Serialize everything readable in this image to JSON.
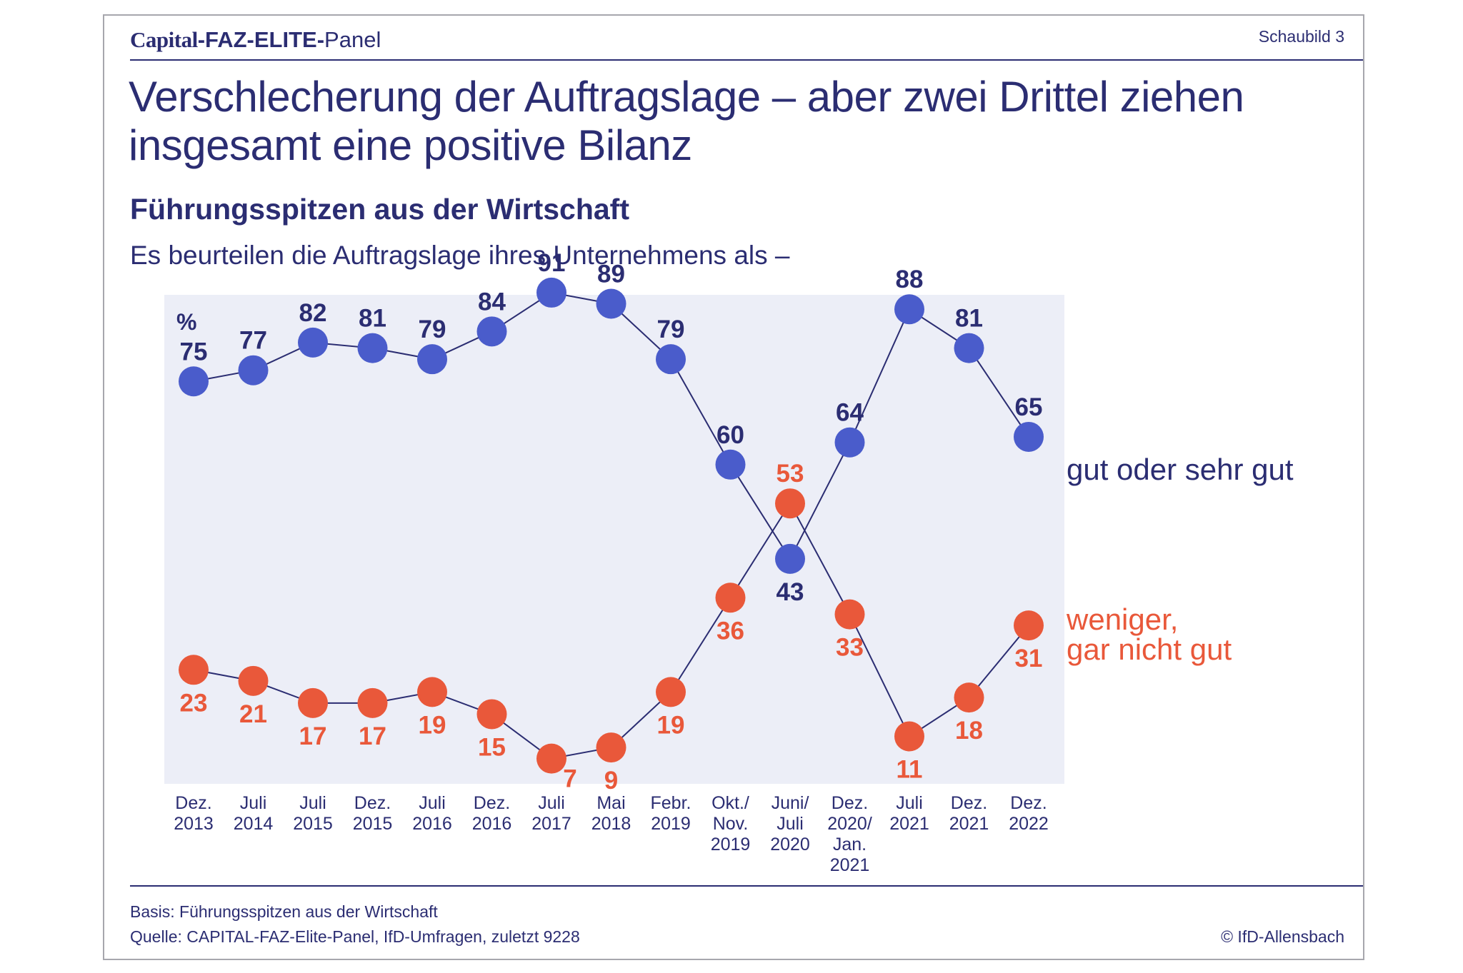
{
  "header": {
    "brand_capital": "Capital",
    "brand_faz": "-FAZ-ELITE-",
    "brand_panel": "Panel",
    "schaubild": "Schaubild 3"
  },
  "title": "Verschlecherung der Auftragslage – aber zwei Drittel ziehen insgesamt eine positive Bilanz",
  "subtitle": "Führungsspitzen aus der Wirtschaft",
  "question": "Es beurteilen die Auftragslage ihres Unternehmens als –",
  "footer": {
    "basis": "Basis: Führungsspitzen aus der Wirtschaft",
    "quelle": "Quelle: CAPITAL-FAZ-Elite-Panel, IfD-Umfragen, zuletzt 9228",
    "copyright": "© IfD-Allensbach"
  },
  "colors": {
    "blue_marker": "#4a5ccb",
    "blue_label": "#2b2d72",
    "orange": "#e9583a",
    "plot_bg": "#eceef7",
    "text": "#2b2d72"
  },
  "chart_data": {
    "type": "line",
    "unit_label": "%",
    "categories": [
      [
        "Dez.",
        "2013"
      ],
      [
        "Juli",
        "2014"
      ],
      [
        "Juli",
        "2015"
      ],
      [
        "Dez.",
        "2015"
      ],
      [
        "Juli",
        "2016"
      ],
      [
        "Dez.",
        "2016"
      ],
      [
        "Juli",
        "2017"
      ],
      [
        "Mai",
        "2018"
      ],
      [
        "Febr.",
        "2019"
      ],
      [
        "Okt./",
        "Nov.",
        "2019"
      ],
      [
        "Juni/",
        "Juli",
        "2020"
      ],
      [
        "Dez.",
        "2020/",
        "Jan.",
        "2021"
      ],
      [
        "Juli",
        "2021"
      ],
      [
        "Dez.",
        "2021"
      ],
      [
        "Dez.",
        "2022"
      ]
    ],
    "series": [
      {
        "name": "gut oder sehr gut",
        "values": [
          75,
          77,
          82,
          81,
          79,
          84,
          91,
          89,
          79,
          60,
          43,
          64,
          88,
          81,
          65
        ]
      },
      {
        "name": "weniger, gar nicht gut",
        "values": [
          23,
          21,
          17,
          17,
          19,
          15,
          7,
          9,
          19,
          36,
          53,
          33,
          11,
          18,
          31
        ]
      }
    ],
    "label_positions": [
      [
        "above",
        "above",
        "above",
        "above",
        "above",
        "above",
        "above",
        "above",
        "above",
        "above",
        "below",
        "above",
        "above",
        "above",
        "above"
      ],
      [
        "below",
        "below",
        "below",
        "below",
        "below",
        "below",
        "below-right",
        "below",
        "below",
        "below",
        "above",
        "below",
        "below",
        "below",
        "below"
      ]
    ],
    "ylim": [
      0,
      100
    ],
    "grid": false,
    "legend": "right, labels at line ends"
  }
}
